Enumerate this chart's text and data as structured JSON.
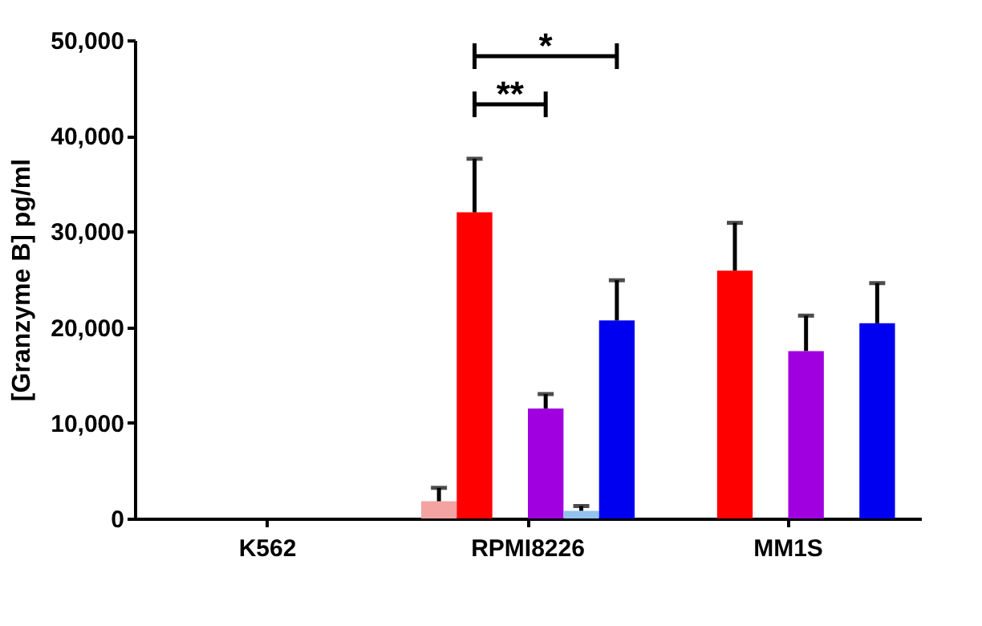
{
  "chart_data": {
    "type": "bar",
    "ylabel": "[Granzyme B] pg/ml",
    "categories": [
      "K562",
      "RPMI8226",
      "MM1S"
    ],
    "series": [
      {
        "color": "#f4a3a3",
        "values": [
          0,
          1800,
          0
        ],
        "errors": [
          null,
          [
            1800,
            3200
          ],
          null
        ]
      },
      {
        "color": "#ff0000",
        "values": [
          0,
          32000,
          25900
        ],
        "errors": [
          null,
          [
            32000,
            37600
          ],
          [
            25900,
            30900
          ]
        ]
      },
      {
        "color": "#d9a6ef",
        "values": [
          0,
          0,
          0
        ],
        "errors": [
          null,
          null,
          null
        ]
      },
      {
        "color": "#a000e0",
        "values": [
          0,
          11500,
          17500
        ],
        "errors": [
          null,
          [
            11500,
            13000
          ],
          [
            17500,
            21200
          ]
        ]
      },
      {
        "color": "#94c2ee",
        "values": [
          0,
          800,
          0
        ],
        "errors": [
          null,
          [
            800,
            1300
          ],
          null
        ]
      },
      {
        "color": "#0000f0",
        "values": [
          0,
          20700,
          20400
        ],
        "errors": [
          null,
          [
            20700,
            24900
          ],
          [
            20400,
            24600
          ]
        ]
      }
    ],
    "ylim": [
      0,
      50000
    ],
    "yticks": [
      0,
      {
        "value": 10000,
        "label": "10,000"
      },
      {
        "value": 20000,
        "label": "20,000"
      },
      {
        "value": 30000,
        "label": "30,000"
      },
      {
        "value": 40000,
        "label": "40,000"
      },
      {
        "value": 50000,
        "label": "50,000"
      }
    ],
    "grid": false,
    "annotations": [
      "**",
      "*"
    ]
  }
}
